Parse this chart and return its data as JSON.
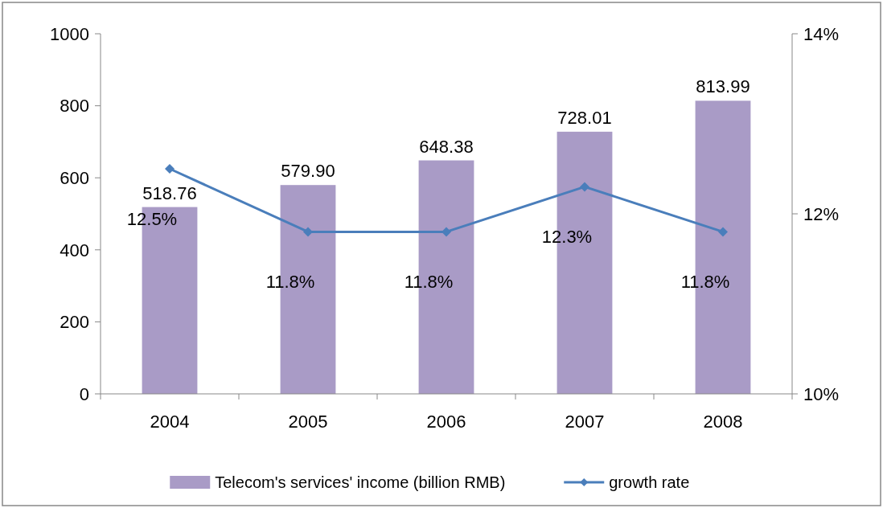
{
  "chart_data": {
    "type": "bar",
    "categories": [
      "2004",
      "2005",
      "2006",
      "2007",
      "2008"
    ],
    "series": [
      {
        "name": "Telecom's services' income (billion RMB)",
        "color": "#a99bc6",
        "values": [
          518.76,
          579.9,
          648.38,
          728.01,
          813.99
        ],
        "value_labels": [
          "518.76",
          "579.90",
          "648.38",
          "728.01",
          "813.99"
        ]
      },
      {
        "name": "growth rate",
        "type": "line",
        "axis": "y2",
        "color": "#4a7ebb",
        "marker": "diamond",
        "values": [
          12.5,
          11.8,
          11.8,
          12.3,
          11.8
        ],
        "value_labels": [
          "12.5%",
          "11.8%",
          "11.8%",
          "12.3%",
          "11.8%"
        ]
      }
    ],
    "ylim": [
      0,
      1000
    ],
    "yticks": [
      0,
      200,
      400,
      600,
      800,
      1000
    ],
    "y2lim": [
      10,
      14
    ],
    "y2ticks": [
      {
        "value": 10,
        "label": "10%"
      },
      {
        "value": 12,
        "label": "12%"
      },
      {
        "value": 14,
        "label": "14%"
      }
    ],
    "grid": false,
    "legend": "bottom"
  }
}
